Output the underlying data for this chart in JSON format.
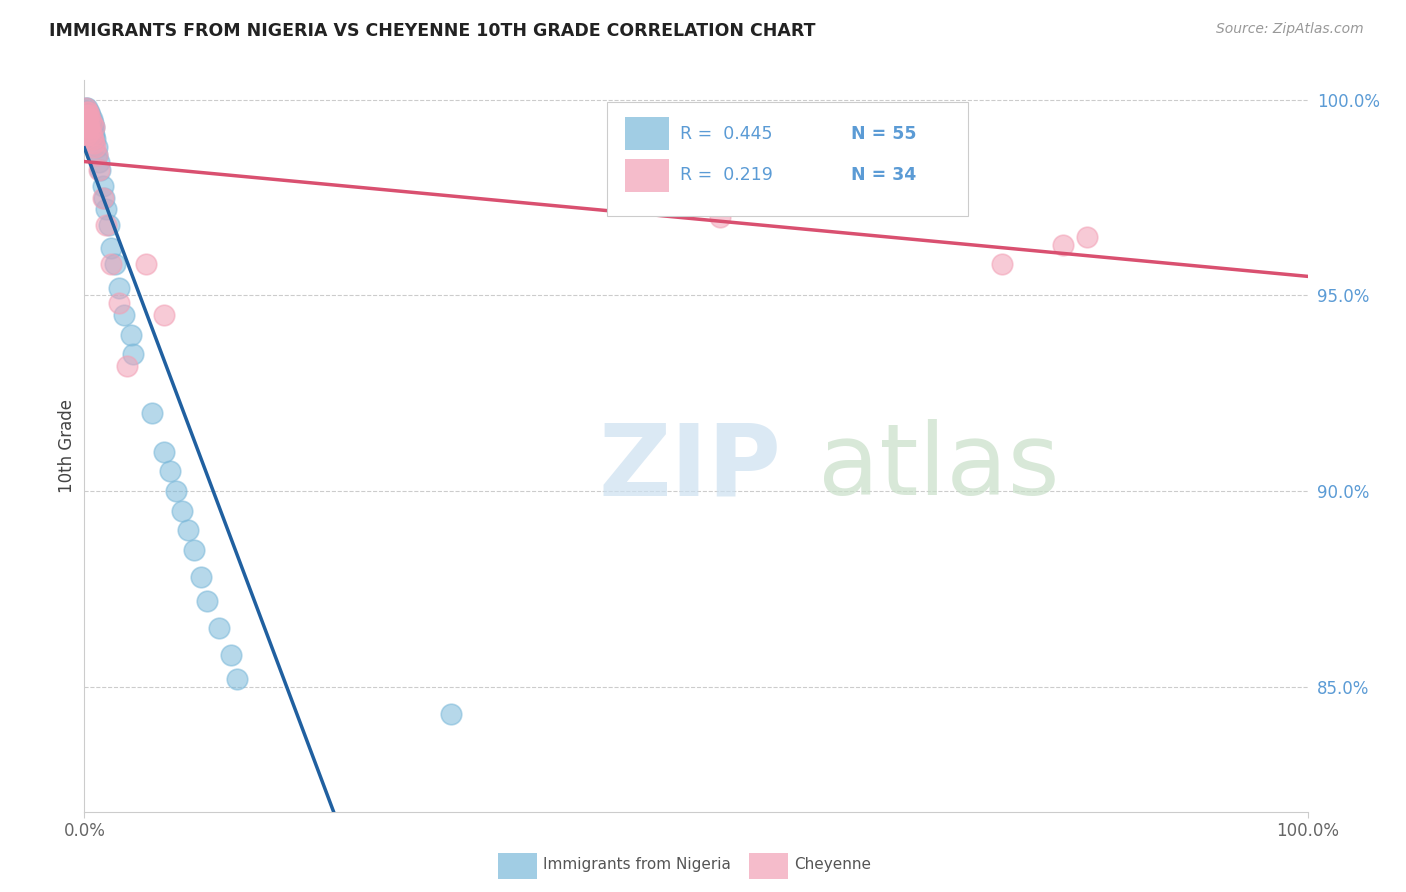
{
  "title": "IMMIGRANTS FROM NIGERIA VS CHEYENNE 10TH GRADE CORRELATION CHART",
  "source": "Source: ZipAtlas.com",
  "ylabel": "10th Grade",
  "ylabel_right_ticks": [
    "100.0%",
    "95.0%",
    "90.0%",
    "85.0%"
  ],
  "ylabel_right_vals": [
    1.0,
    0.95,
    0.9,
    0.85
  ],
  "legend_blue_r": "R =  0.445",
  "legend_blue_n": "N = 55",
  "legend_pink_r": "R =  0.219",
  "legend_pink_n": "N = 34",
  "legend_label_blue": "Immigrants from Nigeria",
  "legend_label_pink": "Cheyenne",
  "blue_color": "#7ab8d9",
  "pink_color": "#f2a0b5",
  "blue_line_color": "#2060a0",
  "pink_line_color": "#d95070",
  "blue_scatter_x": [
    0.001,
    0.001,
    0.001,
    0.001,
    0.001,
    0.001,
    0.002,
    0.002,
    0.002,
    0.002,
    0.002,
    0.003,
    0.003,
    0.003,
    0.003,
    0.004,
    0.004,
    0.004,
    0.005,
    0.005,
    0.005,
    0.006,
    0.006,
    0.007,
    0.007,
    0.008,
    0.008,
    0.009,
    0.01,
    0.01,
    0.012,
    0.013,
    0.015,
    0.016,
    0.018,
    0.02,
    0.022,
    0.025,
    0.028,
    0.032,
    0.038,
    0.04,
    0.055,
    0.065,
    0.07,
    0.075,
    0.08,
    0.085,
    0.09,
    0.095,
    0.1,
    0.11,
    0.12,
    0.125,
    0.3
  ],
  "blue_scatter_y": [
    0.998,
    0.997,
    0.996,
    0.995,
    0.994,
    0.993,
    0.998,
    0.997,
    0.996,
    0.994,
    0.993,
    0.997,
    0.996,
    0.995,
    0.994,
    0.997,
    0.995,
    0.993,
    0.996,
    0.994,
    0.992,
    0.995,
    0.993,
    0.994,
    0.992,
    0.993,
    0.991,
    0.99,
    0.988,
    0.986,
    0.984,
    0.982,
    0.978,
    0.975,
    0.972,
    0.968,
    0.962,
    0.958,
    0.952,
    0.945,
    0.94,
    0.935,
    0.92,
    0.91,
    0.905,
    0.9,
    0.895,
    0.89,
    0.885,
    0.878,
    0.872,
    0.865,
    0.858,
    0.852,
    0.843
  ],
  "pink_scatter_x": [
    0.001,
    0.001,
    0.001,
    0.002,
    0.002,
    0.002,
    0.002,
    0.003,
    0.003,
    0.003,
    0.004,
    0.004,
    0.005,
    0.005,
    0.006,
    0.006,
    0.007,
    0.008,
    0.008,
    0.009,
    0.01,
    0.012,
    0.015,
    0.018,
    0.022,
    0.028,
    0.035,
    0.05,
    0.065,
    0.52,
    0.54,
    0.75,
    0.8,
    0.82
  ],
  "pink_scatter_y": [
    0.998,
    0.996,
    0.994,
    0.997,
    0.995,
    0.993,
    0.991,
    0.997,
    0.995,
    0.993,
    0.996,
    0.993,
    0.995,
    0.992,
    0.994,
    0.991,
    0.99,
    0.993,
    0.989,
    0.988,
    0.986,
    0.982,
    0.975,
    0.968,
    0.958,
    0.948,
    0.932,
    0.958,
    0.945,
    0.97,
    0.975,
    0.958,
    0.963,
    0.965
  ],
  "xmin": 0.0,
  "xmax": 1.0,
  "ymin": 0.818,
  "ymax": 1.005,
  "grid_color": "#cccccc",
  "background_color": "#ffffff",
  "title_color": "#222222",
  "axis_color": "#5b9bd5",
  "r_color": "#5b9bd5",
  "n_color": "#5b9bd5"
}
